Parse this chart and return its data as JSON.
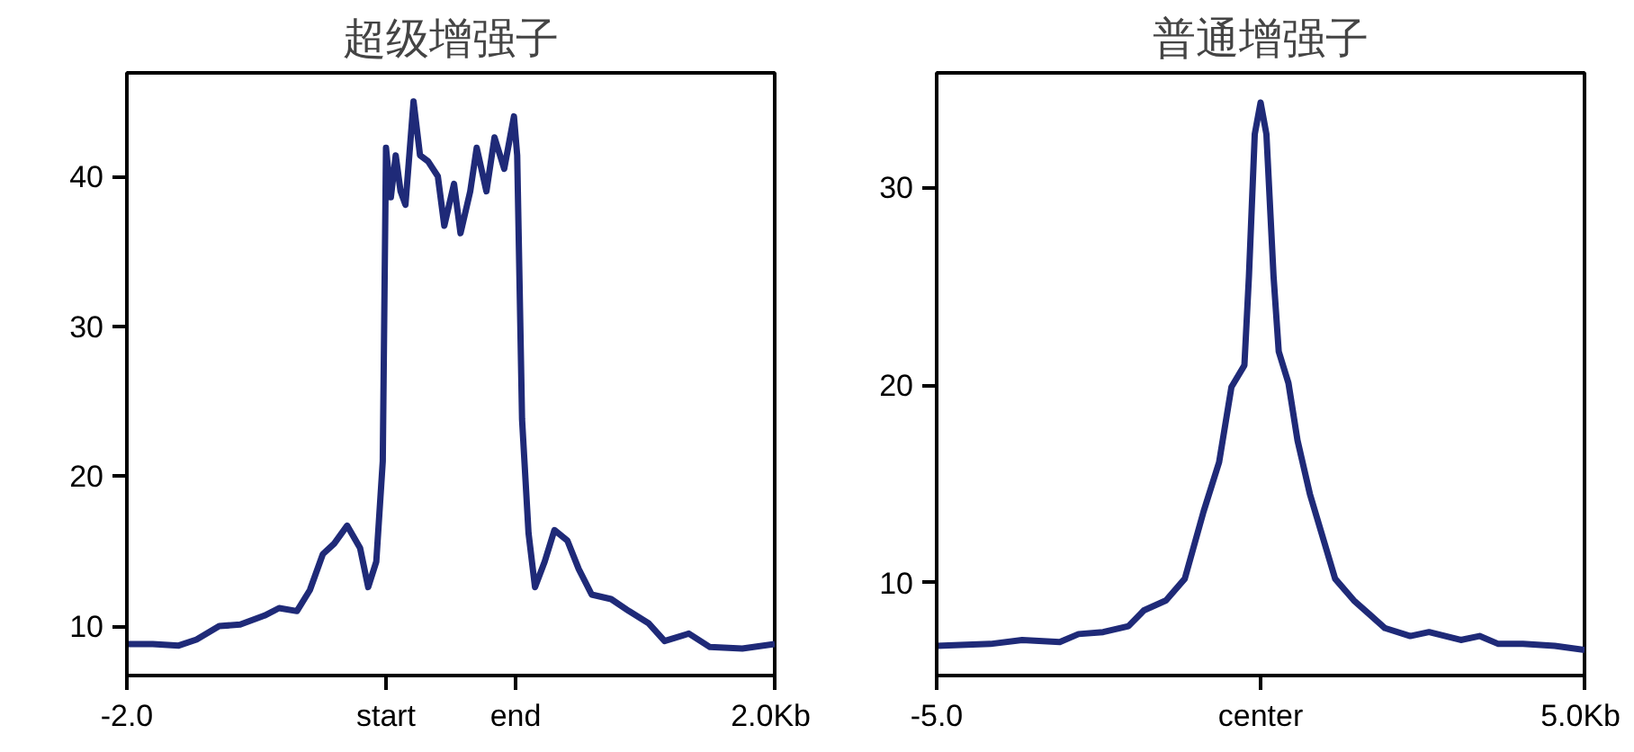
{
  "chart_data": [
    {
      "type": "line",
      "title": "超级增强子",
      "color": "#1f2a78",
      "grid": false,
      "line_style": "solid",
      "marker": "none",
      "xlim": [
        -2.0,
        2.0
      ],
      "xticks": [
        {
          "value": -2.0,
          "label": "-2.0"
        },
        {
          "value": -0.4,
          "label": "start"
        },
        {
          "value": 0.4,
          "label": "end"
        },
        {
          "value": 2.0,
          "label": "2.0Kb"
        }
      ],
      "ylim": [
        6.7,
        46.9
      ],
      "yticks": [
        10,
        20,
        30,
        40
      ],
      "x": [
        -2.0,
        -1.84,
        -1.68,
        -1.57,
        -1.43,
        -1.3,
        -1.15,
        -1.06,
        -0.95,
        -0.87,
        -0.79,
        -0.72,
        -0.64,
        -0.56,
        -0.51,
        -0.46,
        -0.42,
        -0.4,
        -0.37,
        -0.34,
        -0.31,
        -0.28,
        -0.23,
        -0.19,
        -0.14,
        -0.08,
        -0.04,
        0.02,
        0.06,
        0.12,
        0.16,
        0.22,
        0.27,
        0.33,
        0.39,
        0.41,
        0.44,
        0.48,
        0.52,
        0.58,
        0.64,
        0.72,
        0.79,
        0.87,
        0.99,
        1.1,
        1.22,
        1.32,
        1.47,
        1.6,
        1.8,
        2.0
      ],
      "values": [
        8.8,
        8.8,
        8.7,
        9.1,
        10.0,
        10.1,
        10.7,
        11.2,
        11.0,
        12.4,
        14.8,
        15.5,
        16.7,
        15.2,
        12.6,
        14.3,
        21.0,
        41.9,
        38.6,
        41.4,
        39.0,
        38.1,
        45.0,
        41.4,
        41.0,
        40.0,
        36.7,
        39.5,
        36.2,
        39.0,
        41.9,
        39.0,
        42.6,
        40.5,
        44.0,
        41.4,
        23.8,
        16.2,
        12.6,
        14.3,
        16.4,
        15.7,
        13.8,
        12.1,
        11.8,
        11.0,
        10.2,
        9.0,
        9.5,
        8.6,
        8.5,
        8.8
      ]
    },
    {
      "type": "line",
      "title": "普通增强子",
      "color": "#1f2a78",
      "grid": false,
      "line_style": "solid",
      "marker": "none",
      "xlim": [
        -5,
        5
      ],
      "xticks": [
        {
          "value": -5,
          "label": "-5.0"
        },
        {
          "value": 0,
          "label": "center"
        },
        {
          "value": 5,
          "label": "5.0Kb"
        }
      ],
      "ylim": [
        5.3,
        35.8
      ],
      "yticks": [
        10,
        20,
        30
      ],
      "x": [
        -5.0,
        -4.17,
        -3.68,
        -3.1,
        -2.81,
        -2.43,
        -2.04,
        -1.8,
        -1.46,
        -1.17,
        -0.88,
        -0.64,
        -0.45,
        -0.25,
        -0.18,
        -0.09,
        0,
        0.09,
        0.2,
        0.28,
        0.43,
        0.57,
        0.76,
        1.15,
        1.44,
        1.92,
        2.31,
        2.6,
        3.09,
        3.38,
        3.67,
        4.05,
        4.54,
        5.0
      ],
      "values": [
        6.8,
        6.9,
        7.1,
        7.0,
        7.4,
        7.5,
        7.8,
        8.6,
        9.1,
        10.2,
        13.6,
        16.1,
        19.9,
        21.0,
        25.5,
        32.7,
        34.3,
        32.7,
        25.5,
        21.7,
        20.1,
        17.2,
        14.5,
        10.2,
        9.1,
        7.7,
        7.3,
        7.5,
        7.1,
        7.3,
        6.9,
        6.9,
        6.8,
        6.6
      ]
    }
  ]
}
